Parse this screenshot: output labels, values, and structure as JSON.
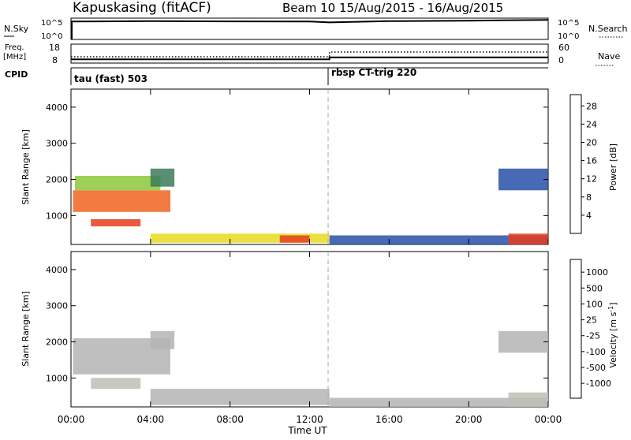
{
  "header": {
    "station": "Kapuskasing (fitACF)",
    "beam_info": "Beam 10  15/Aug/2015 - 16/Aug/2015"
  },
  "nsky_panel": {
    "left_label": "N.Sky",
    "left_top_tick": "10^5",
    "left_bottom_tick": "10^0",
    "right_top_tick": "10^5",
    "right_bottom_tick": "10^0",
    "right_label": "N.Search"
  },
  "freq_panel": {
    "left_label_top": "Freq.",
    "left_label_unit": "[MHz]",
    "left_top_tick": "18",
    "left_bottom_tick": "8",
    "right_top_tick": "60",
    "right_bottom_tick": "0",
    "right_label": "Nave"
  },
  "cpid_panel": {
    "label": "CPID",
    "mode_1": "tau (fast) 503",
    "mode_2": "rbsp CT-trig 220"
  },
  "axes": {
    "y_label": "Slant Range [km]",
    "x_label": "Time UT",
    "x_ticks": [
      "00:00",
      "04:00",
      "08:00",
      "12:00",
      "16:00",
      "20:00",
      "00:00"
    ],
    "y_ticks": [
      "1000",
      "2000",
      "3000",
      "4000"
    ]
  },
  "power_colorbar": {
    "label": "Power [dB]",
    "ticks": [
      "4",
      "8",
      "12",
      "16",
      "20",
      "24",
      "28"
    ],
    "colors": [
      "#1a1aff",
      "#2850a8",
      "#3c7a5a",
      "#5aa05a",
      "#8cc83c",
      "#e6dc1e",
      "#f0b414",
      "#f08c14",
      "#f0641e",
      "#e63c1e",
      "#e61e14"
    ]
  },
  "velocity_colorbar": {
    "label": "Velocity  [m s",
    "label_sup": "-1",
    "label_end": "]",
    "ticks": [
      "1000",
      "500",
      "100",
      "25",
      "-25",
      "-100",
      "-500",
      "-1000"
    ],
    "colors": [
      "#2840c0",
      "#3c6ea0",
      "#3c8c64",
      "#50b450",
      "#78d250",
      "#b4b4b4",
      "#bebeb4",
      "#f0c81e",
      "#f0961e",
      "#f06414",
      "#e62814"
    ]
  },
  "chart_data": [
    {
      "type": "line",
      "title": "N.Sky / N.Search",
      "x": [
        0,
        4,
        8,
        12,
        13,
        16,
        20,
        24
      ],
      "y_nsky_log10": [
        4.2,
        4.3,
        4.25,
        4.2,
        4.0,
        4.3,
        4.4,
        4.6
      ],
      "ylim": [
        0,
        5
      ]
    },
    {
      "type": "line",
      "title": "Freq. / Nave",
      "freq_mhz": {
        "x": [
          0,
          13,
          13,
          24
        ],
        "y": [
          10,
          10,
          11,
          11
        ]
      },
      "nave": {
        "x": [
          0,
          13,
          13,
          24
        ],
        "y": [
          20,
          20,
          35,
          35
        ]
      },
      "freq_ylim": [
        8,
        18
      ],
      "nave_ylim": [
        0,
        60
      ]
    },
    {
      "type": "heatmap",
      "title": "Power [dB]",
      "xlabel": "Time UT",
      "ylabel": "Slant Range [km]",
      "xlim": [
        0,
        24
      ],
      "ylim": [
        200,
        4500
      ],
      "zlim": [
        0,
        30
      ],
      "regions": [
        {
          "t0": 0.1,
          "t1": 5.0,
          "r0": 1100,
          "r1": 1700,
          "value": 22
        },
        {
          "t0": 0.2,
          "t1": 4.5,
          "r0": 1700,
          "r1": 2100,
          "value": 12
        },
        {
          "t0": 1.0,
          "t1": 3.5,
          "r0": 700,
          "r1": 900,
          "value": 26
        },
        {
          "t0": 4.0,
          "t1": 5.2,
          "r0": 1800,
          "r1": 2300,
          "value": 6
        },
        {
          "t0": 4.0,
          "t1": 13.0,
          "r0": 250,
          "r1": 500,
          "value": 14
        },
        {
          "t0": 10.5,
          "t1": 12.0,
          "r0": 250,
          "r1": 450,
          "value": 26
        },
        {
          "t0": 13.0,
          "t1": 24.0,
          "r0": 200,
          "r1": 450,
          "value": 4
        },
        {
          "t0": 21.5,
          "t1": 24.0,
          "r0": 1700,
          "r1": 2300,
          "value": 5
        },
        {
          "t0": 22.0,
          "t1": 24.0,
          "r0": 200,
          "r1": 500,
          "value": 26
        }
      ]
    },
    {
      "type": "heatmap",
      "title": "Velocity [m s-1]",
      "xlabel": "Time UT",
      "ylabel": "Slant Range [km]",
      "xlim": [
        0,
        24
      ],
      "ylim": [
        200,
        4500
      ],
      "zlim": [
        -1000,
        1000
      ],
      "regions": [
        {
          "t0": 0.1,
          "t1": 5.0,
          "r0": 1100,
          "r1": 2100,
          "value": 0
        },
        {
          "t0": 1.0,
          "t1": 3.5,
          "r0": 700,
          "r1": 1000,
          "value": -100
        },
        {
          "t0": 4.0,
          "t1": 5.2,
          "r0": 1800,
          "r1": 2300,
          "value": 0
        },
        {
          "t0": 4.0,
          "t1": 13.0,
          "r0": 250,
          "r1": 700,
          "value": 25
        },
        {
          "t0": 13.0,
          "t1": 24.0,
          "r0": 200,
          "r1": 450,
          "value": 60
        },
        {
          "t0": 21.5,
          "t1": 24.0,
          "r0": 1700,
          "r1": 2300,
          "value": 0
        },
        {
          "t0": 22.0,
          "t1": 24.0,
          "r0": 200,
          "r1": 600,
          "value": -150
        }
      ]
    }
  ]
}
